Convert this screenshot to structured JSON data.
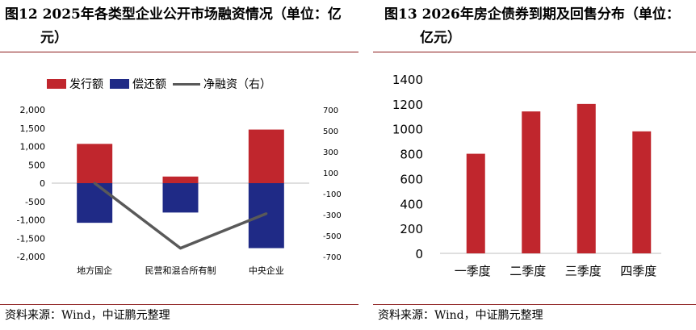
{
  "left": {
    "title_line1": "图12 2025年各类型企业公开市场融资情况（单位：亿",
    "title_line2": "元）",
    "source": "资料来源：Wind，中证鹏元整理",
    "colors": {
      "issue": "#c0262d",
      "repay": "#1f2a86",
      "net": "#595959"
    },
    "chart_data": {
      "type": "bar",
      "categories": [
        "地方国企",
        "民营和混合所有制",
        "中央企业"
      ],
      "series": [
        {
          "name": "发行额",
          "values": [
            1070,
            180,
            1460
          ],
          "axis": "left"
        },
        {
          "name": "偿还额",
          "values": [
            -1080,
            -800,
            -1770
          ],
          "axis": "left"
        },
        {
          "name": "净融资（右）",
          "values": [
            0,
            -620,
            -290
          ],
          "axis": "right",
          "type": "line"
        }
      ],
      "ylim": [
        -2000,
        2000
      ],
      "yticks": [
        "2,000",
        "1,500",
        "1,000",
        "500",
        "0",
        "-500",
        "-1,000",
        "-1,500",
        "-2,000"
      ],
      "ylim_right": [
        -700,
        700
      ],
      "yticks_right": [
        "700",
        "500",
        "300",
        "100",
        "-100",
        "-300",
        "-500",
        "-700"
      ],
      "yticks_right_values": [
        700,
        500,
        300,
        100,
        -100,
        -300,
        -500,
        -700
      ]
    }
  },
  "right": {
    "title_line1": "图13 2026年房企债券到期及回售分布（单位：",
    "title_line2": "亿元）",
    "source": "资料来源：Wind，中证鹏元整理",
    "colors": {
      "bar": "#c0262d"
    },
    "chart_data": {
      "type": "bar",
      "categories": [
        "一季度",
        "二季度",
        "三季度",
        "四季度"
      ],
      "values": [
        800,
        1140,
        1200,
        980
      ],
      "ylim": [
        0,
        1400
      ],
      "yticks": [
        0,
        200,
        400,
        600,
        800,
        1000,
        1200,
        1400
      ]
    }
  }
}
